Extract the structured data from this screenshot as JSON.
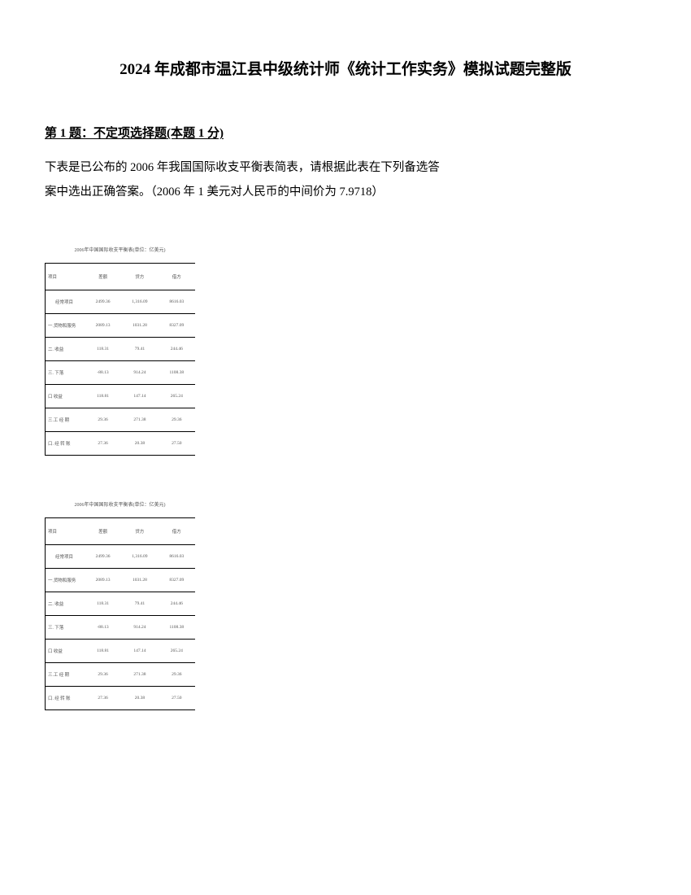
{
  "title": "2024 年成都市温江县中级统计师《统计工作实务》模拟试题完整版",
  "question": {
    "header": "第 1 题：不定项选择题(本题 1 分)",
    "line1": "下表是已公布的 2006 年我国国际收支平衡表简表，请根据此表在下列备选答",
    "line2": "案中选出正确答案。（2006 年 1 美元对人民币的中间价为 7.9718）"
  },
  "table": {
    "title": "2006年中国国际收支平衡表(单位：亿美元)",
    "headers": [
      "项目",
      "差额",
      "贷方",
      "借方"
    ],
    "rows": [
      {
        "indent": true,
        "cells": [
          "经常项目",
          "2499.36",
          "1,316.09",
          "8616.03"
        ]
      },
      {
        "cells": [
          "一.货物和服务",
          "2089.13",
          "1031.28",
          "8327.09"
        ]
      },
      {
        "cells": [
          "二. 收益",
          "118.31",
          "79.41",
          "244.46"
        ]
      },
      {
        "cells": [
          "三. 下落",
          "-88.13",
          "914.24",
          "1108.38"
        ]
      },
      {
        "cells": [
          "口 收益",
          "118.81",
          "147.14",
          "265.24"
        ]
      },
      {
        "cells": [
          "三.工 经 期",
          "29.36",
          "271.38",
          "29.36"
        ]
      },
      {
        "cells": [
          "口. 经 转 账",
          "27.36",
          "20.38",
          "27.50"
        ]
      }
    ]
  }
}
